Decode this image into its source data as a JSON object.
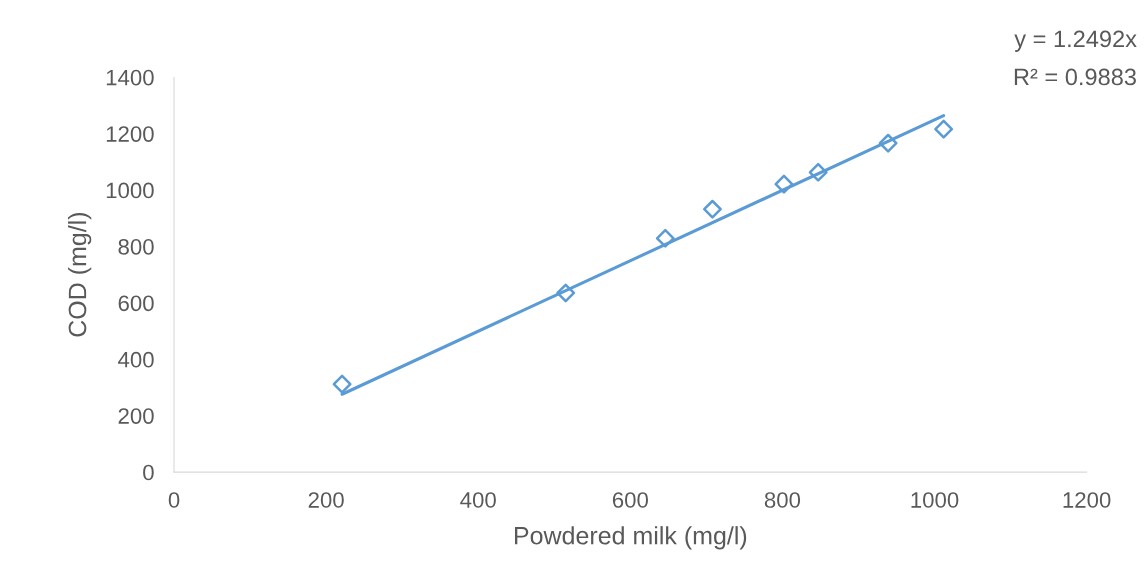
{
  "chart_data": {
    "type": "scatter",
    "xlabel": "Powdered milk (mg/l)",
    "ylabel": "COD (mg/l)",
    "xlim": [
      0,
      1200
    ],
    "xticks": [
      0,
      200,
      400,
      600,
      800,
      1000,
      1200
    ],
    "ylim": [
      0,
      1400
    ],
    "yticks": [
      0,
      200,
      400,
      600,
      800,
      1000,
      1200,
      1400
    ],
    "grid": false,
    "series": [
      {
        "marker": "diamond",
        "color": "#5b9bd5",
        "x": [
          221,
          515,
          646,
          708,
          802,
          847,
          939,
          1012
        ],
        "values": [
          312,
          635,
          829,
          932,
          1021,
          1063,
          1166,
          1216
        ]
      },
      {
        "type": "line",
        "color": "#5b9bd5",
        "x": [
          221,
          1012
        ],
        "values": [
          276,
          1264
        ]
      }
    ],
    "annotations": [
      "y = 1.2492x",
      "R² = 0.9883"
    ]
  }
}
